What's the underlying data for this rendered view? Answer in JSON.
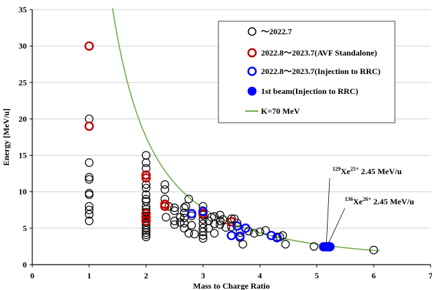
{
  "chart_data": {
    "type": "scatter",
    "title": "",
    "xlabel": "Mass to Charge Ratio",
    "ylabel": "Energy [MeV/u]",
    "xlim": [
      0,
      7
    ],
    "ylim": [
      0,
      35
    ],
    "xticks": [
      0,
      1,
      2,
      3,
      4,
      5,
      6,
      7
    ],
    "yticks": [
      0,
      5,
      10,
      15,
      20,
      25,
      30,
      35
    ],
    "grid": {
      "horizontal": true,
      "vertical": false
    },
    "legend_position": "top-right",
    "series": [
      {
        "name": "～2022.7",
        "marker": "open-circle",
        "color": "#000000",
        "points": [
          [
            1,
            20
          ],
          [
            1,
            14
          ],
          [
            1,
            12
          ],
          [
            1,
            11.7
          ],
          [
            1,
            9.8
          ],
          [
            1,
            9.6
          ],
          [
            1,
            8
          ],
          [
            1,
            7.5
          ],
          [
            1,
            6.9
          ],
          [
            1,
            6
          ],
          [
            2,
            15
          ],
          [
            2,
            14
          ],
          [
            2,
            13.2
          ],
          [
            2,
            11
          ],
          [
            2,
            10.5
          ],
          [
            2,
            9.6
          ],
          [
            2,
            9
          ],
          [
            2,
            8.7
          ],
          [
            2,
            8
          ],
          [
            2,
            7.6
          ],
          [
            2,
            7.2
          ],
          [
            2,
            6.7
          ],
          [
            2,
            6.3
          ],
          [
            2,
            5.8
          ],
          [
            2,
            5.4
          ],
          [
            2,
            5
          ],
          [
            2,
            4.7
          ],
          [
            2,
            4.4
          ],
          [
            2,
            4.1
          ],
          [
            2,
            3.8
          ],
          [
            2.33,
            11
          ],
          [
            2.33,
            10.3
          ],
          [
            2.33,
            9
          ],
          [
            2.35,
            6.5
          ],
          [
            2.4,
            8
          ],
          [
            2.5,
            7.8
          ],
          [
            2.5,
            7.4
          ],
          [
            2.5,
            6
          ],
          [
            2.5,
            5.5
          ],
          [
            2.6,
            6.5
          ],
          [
            2.6,
            5.8
          ],
          [
            2.67,
            7.8
          ],
          [
            2.67,
            7.1
          ],
          [
            2.67,
            6.4
          ],
          [
            2.67,
            5.7
          ],
          [
            2.67,
            5
          ],
          [
            2.7,
            8
          ],
          [
            2.75,
            9
          ],
          [
            2.75,
            4.3
          ],
          [
            2.8,
            6.7
          ],
          [
            2.8,
            5.4
          ],
          [
            2.85,
            4.2
          ],
          [
            3,
            8
          ],
          [
            3,
            7.4
          ],
          [
            3,
            6.8
          ],
          [
            3,
            6.2
          ],
          [
            3,
            5.6
          ],
          [
            3,
            5
          ],
          [
            3,
            4.5
          ],
          [
            3,
            4
          ],
          [
            3,
            3.6
          ],
          [
            3.1,
            6
          ],
          [
            3.1,
            5
          ],
          [
            3.15,
            6.5
          ],
          [
            3.2,
            6.6
          ],
          [
            3.2,
            5.6
          ],
          [
            3.2,
            4.3
          ],
          [
            3.3,
            6.8
          ],
          [
            3.3,
            6
          ],
          [
            3.3,
            5.5
          ],
          [
            3.35,
            6.2
          ],
          [
            3.4,
            5.1
          ],
          [
            3.5,
            6.3
          ],
          [
            3.5,
            5.2
          ],
          [
            3.55,
            6.3
          ],
          [
            3.6,
            5.7
          ],
          [
            3.65,
            4.4
          ],
          [
            3.65,
            3.7
          ],
          [
            3.7,
            2.8
          ],
          [
            3.8,
            4.6
          ],
          [
            3.9,
            4.3
          ],
          [
            4,
            4.5
          ],
          [
            4.1,
            4.7
          ],
          [
            4.3,
            3.8
          ],
          [
            4.35,
            3.8
          ],
          [
            4.4,
            4
          ],
          [
            4.45,
            2.8
          ],
          [
            4.95,
            2.5
          ],
          [
            6,
            2
          ]
        ]
      },
      {
        "name": "2022.8～2023.7(AVF Standalone)",
        "marker": "open-circle",
        "color": "#c00000",
        "points": [
          [
            1,
            30
          ],
          [
            1,
            19
          ],
          [
            2,
            12.3
          ],
          [
            2,
            11.9
          ],
          [
            2,
            7
          ],
          [
            2,
            6.5
          ],
          [
            2,
            6
          ],
          [
            2.33,
            8.3
          ],
          [
            2.33,
            8
          ],
          [
            3,
            7
          ],
          [
            3.5,
            5.9
          ]
        ]
      },
      {
        "name": "2022.8～2023.7(Injection to RRC)",
        "marker": "open-circle",
        "color": "#0000ff",
        "points": [
          [
            2.8,
            7
          ],
          [
            3,
            7.3
          ],
          [
            3.5,
            4
          ],
          [
            3.6,
            5.3
          ],
          [
            3.65,
            3.9
          ],
          [
            3.75,
            5
          ],
          [
            4.2,
            4
          ],
          [
            4.3,
            3.7
          ]
        ]
      },
      {
        "name": "1st beam(Injection to RRC)",
        "marker": "filled-circle",
        "color": "#0000ff",
        "points": [
          [
            5.12,
            2.45
          ],
          [
            5.16,
            2.45
          ],
          [
            5.2,
            2.45
          ],
          [
            5.23,
            2.45
          ]
        ]
      },
      {
        "name": "K=70 MeV",
        "marker": "line",
        "color": "#70ad47",
        "formula": "E = K / (A/Q)^2",
        "K": 70,
        "x_range": [
          1.41,
          6.1
        ]
      }
    ],
    "annotations": [
      {
        "isotope_mass": "129",
        "element": "Xe",
        "charge": "25+",
        "energy": " 2.45 MeV/u",
        "target": [
          5.17,
          2.45
        ]
      },
      {
        "isotope_mass": "136",
        "element": "Xe",
        "charge": "26+",
        "energy": " 2.45 MeV/u",
        "target": [
          5.21,
          2.45
        ]
      }
    ]
  }
}
